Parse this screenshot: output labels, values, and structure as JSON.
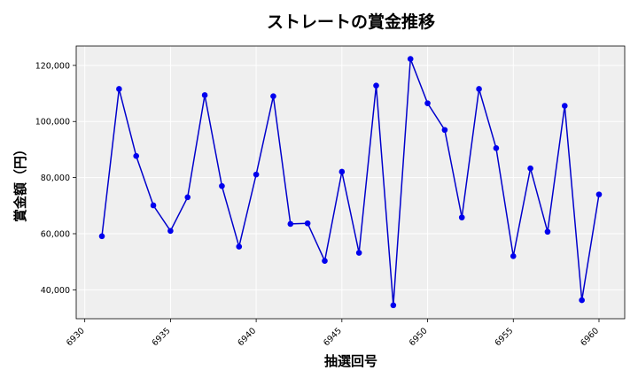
{
  "chart_data": {
    "type": "line",
    "title": "ストレートの賞金推移",
    "xlabel": "抽選回号",
    "ylabel": "賞金額（円）",
    "x": [
      6931,
      6932,
      6933,
      6934,
      6935,
      6936,
      6937,
      6938,
      6939,
      6940,
      6941,
      6942,
      6943,
      6944,
      6945,
      6946,
      6947,
      6948,
      6949,
      6950,
      6951,
      6952,
      6953,
      6954,
      6955,
      6956,
      6957,
      6958,
      6959,
      6960
    ],
    "series": [
      {
        "name": "",
        "values": [
          59100,
          111600,
          87700,
          70100,
          61000,
          73000,
          109400,
          77000,
          55400,
          81100,
          109000,
          63500,
          63700,
          50300,
          82100,
          53200,
          112800,
          34500,
          122300,
          106500,
          97000,
          65800,
          111600,
          90500,
          52000,
          83300,
          60700,
          105600,
          36300,
          74000
        ]
      }
    ],
    "xlim": [
      6929.5,
      6961.5
    ],
    "ylim": [
      29700,
      126900
    ],
    "xticks": [
      6930,
      6935,
      6940,
      6945,
      6950,
      6955,
      6960
    ],
    "yticks": [
      40000,
      60000,
      80000,
      100000,
      120000
    ],
    "ytick_labels": [
      "40,000",
      "60,000",
      "80,000",
      "100,000",
      "120,000"
    ],
    "grid": true,
    "legend": "none",
    "colors": {
      "line": "#0000cc",
      "marker": "#0000ee",
      "plot_background": "#efefef",
      "grid": "#ffffff",
      "axis": "#000000"
    }
  }
}
